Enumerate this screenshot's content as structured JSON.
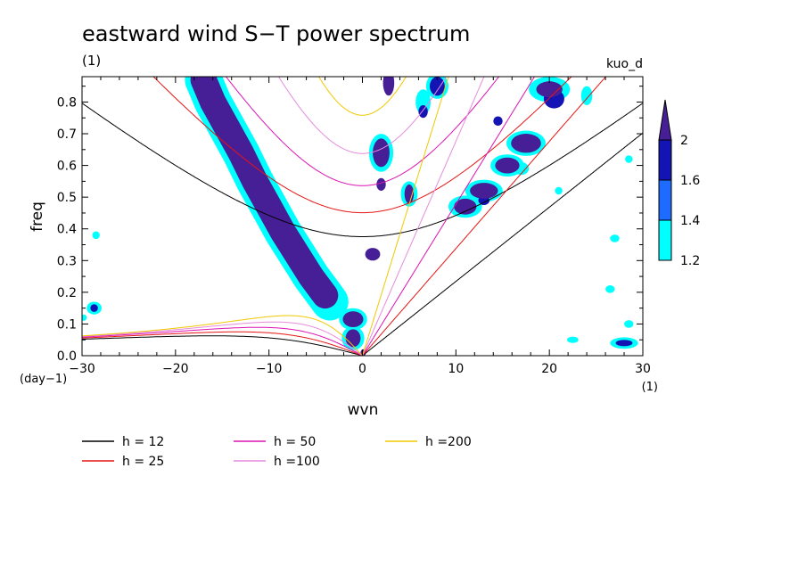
{
  "chart_data": {
    "type": "heatmap",
    "title": "eastward wind S−T power spectrum",
    "subtitle": "(1)",
    "right_label": "kuo_d",
    "xlabel": "wvn",
    "ylabel": "freq",
    "x_unit": "(1)",
    "y_unit": "(day−1)",
    "xlim": [
      -30,
      30
    ],
    "ylim": [
      0,
      0.88
    ],
    "x_ticks": [
      "−30",
      "−20",
      "−10",
      "0",
      "10",
      "20",
      "30"
    ],
    "x_tick_values": [
      -30,
      -20,
      -10,
      0,
      10,
      20,
      30
    ],
    "y_ticks": [
      "0.0",
      "0.1",
      "0.2",
      "0.3",
      "0.4",
      "0.5",
      "0.6",
      "0.7",
      "0.8"
    ],
    "y_tick_values": [
      0,
      0.1,
      0.2,
      0.3,
      0.4,
      0.5,
      0.6,
      0.7,
      0.8
    ],
    "colorbar": {
      "levels": [
        "1.2",
        "1.4",
        "1.6",
        "2"
      ],
      "level_values": [
        1.2,
        1.4,
        1.6,
        2.0
      ],
      "colors": [
        "#00ffff",
        "#1e6cff",
        "#1414b4",
        "#461e96"
      ]
    },
    "dispersion_curves": [
      {
        "name": "h = 12",
        "h": 12,
        "color": "#000000"
      },
      {
        "name": "h = 25",
        "h": 25,
        "color": "#e61414"
      },
      {
        "name": "h = 50",
        "h": 50,
        "color": "#dc14b4"
      },
      {
        "name": "h =100",
        "h": 100,
        "color": "#e68cdc"
      },
      {
        "name": "h =200",
        "h": 200,
        "color": "#f0c800"
      }
    ],
    "spectral_features": [
      {
        "level": 2.0,
        "points": [
          [
            -17,
            0.87
          ],
          [
            -16,
            0.8
          ],
          [
            -14.5,
            0.72
          ],
          [
            -13,
            0.64
          ],
          [
            -11.5,
            0.55
          ],
          [
            -10,
            0.47
          ],
          [
            -8.5,
            0.39
          ],
          [
            -7,
            0.32
          ],
          [
            -5.5,
            0.25
          ],
          [
            -4,
            0.19
          ]
        ],
        "halfwidth": 1.4
      },
      {
        "level": 1.2,
        "points": [
          [
            -17,
            0.87
          ],
          [
            -16,
            0.8
          ],
          [
            -14.5,
            0.72
          ],
          [
            -13,
            0.64
          ],
          [
            -11.5,
            0.55
          ],
          [
            -10,
            0.47
          ],
          [
            -8.5,
            0.39
          ],
          [
            -7,
            0.32
          ],
          [
            -5.5,
            0.25
          ],
          [
            -4,
            0.19
          ],
          [
            -3.5,
            0.17
          ]
        ],
        "halfwidth": 2.0
      },
      {
        "level": 2.0,
        "blobs": [
          [
            -1,
            0.115,
            1.1,
            0.025
          ],
          [
            -1,
            0.055,
            0.8,
            0.028
          ],
          [
            1.1,
            0.32,
            0.8,
            0.02
          ],
          [
            2,
            0.64,
            0.9,
            0.045
          ],
          [
            2,
            0.54,
            0.5,
            0.02
          ],
          [
            5,
            0.51,
            0.5,
            0.03
          ],
          [
            2.8,
            0.86,
            0.6,
            0.04
          ],
          [
            11,
            0.47,
            1.2,
            0.025
          ],
          [
            13,
            0.52,
            1.5,
            0.025
          ],
          [
            15.5,
            0.6,
            1.3,
            0.025
          ],
          [
            17.5,
            0.67,
            1.6,
            0.03
          ],
          [
            20,
            0.84,
            1.4,
            0.025
          ],
          [
            0.1,
            0.01,
            0.3,
            0.01
          ]
        ]
      },
      {
        "level": 1.6,
        "blobs": [
          [
            -28.7,
            0.15,
            0.4,
            0.012
          ],
          [
            28,
            0.04,
            0.9,
            0.01
          ],
          [
            8,
            0.85,
            0.8,
            0.03
          ],
          [
            6.5,
            0.77,
            0.5,
            0.02
          ],
          [
            14.5,
            0.74,
            0.5,
            0.015
          ],
          [
            13,
            0.49,
            0.6,
            0.015
          ],
          [
            20.5,
            0.81,
            1.1,
            0.03
          ]
        ]
      },
      {
        "level": 1.2,
        "blobs": [
          [
            -1,
            0.115,
            1.5,
            0.035
          ],
          [
            -1,
            0.055,
            1.2,
            0.038
          ],
          [
            2,
            0.64,
            1.3,
            0.06
          ],
          [
            5,
            0.51,
            0.9,
            0.04
          ],
          [
            11,
            0.47,
            1.8,
            0.035
          ],
          [
            13,
            0.52,
            2.0,
            0.035
          ],
          [
            15.5,
            0.6,
            1.8,
            0.035
          ],
          [
            17.5,
            0.67,
            2.1,
            0.04
          ],
          [
            20,
            0.84,
            2.2,
            0.04
          ],
          [
            8,
            0.85,
            1.2,
            0.04
          ],
          [
            -28.7,
            0.15,
            0.8,
            0.02
          ],
          [
            28,
            0.04,
            1.5,
            0.018
          ],
          [
            27,
            0.37,
            0.5,
            0.012
          ],
          [
            26.5,
            0.21,
            0.5,
            0.012
          ],
          [
            28.5,
            0.62,
            0.4,
            0.012
          ],
          [
            28.5,
            0.1,
            0.5,
            0.012
          ],
          [
            -28.5,
            0.38,
            0.4,
            0.012
          ],
          [
            22.5,
            0.05,
            0.6,
            0.01
          ],
          [
            17,
            0.59,
            0.8,
            0.02
          ],
          [
            21,
            0.52,
            0.4,
            0.012
          ],
          [
            6.5,
            0.8,
            0.8,
            0.04
          ],
          [
            -29.8,
            0.12,
            0.3,
            0.01
          ],
          [
            24,
            0.82,
            0.6,
            0.03
          ]
        ]
      }
    ]
  }
}
